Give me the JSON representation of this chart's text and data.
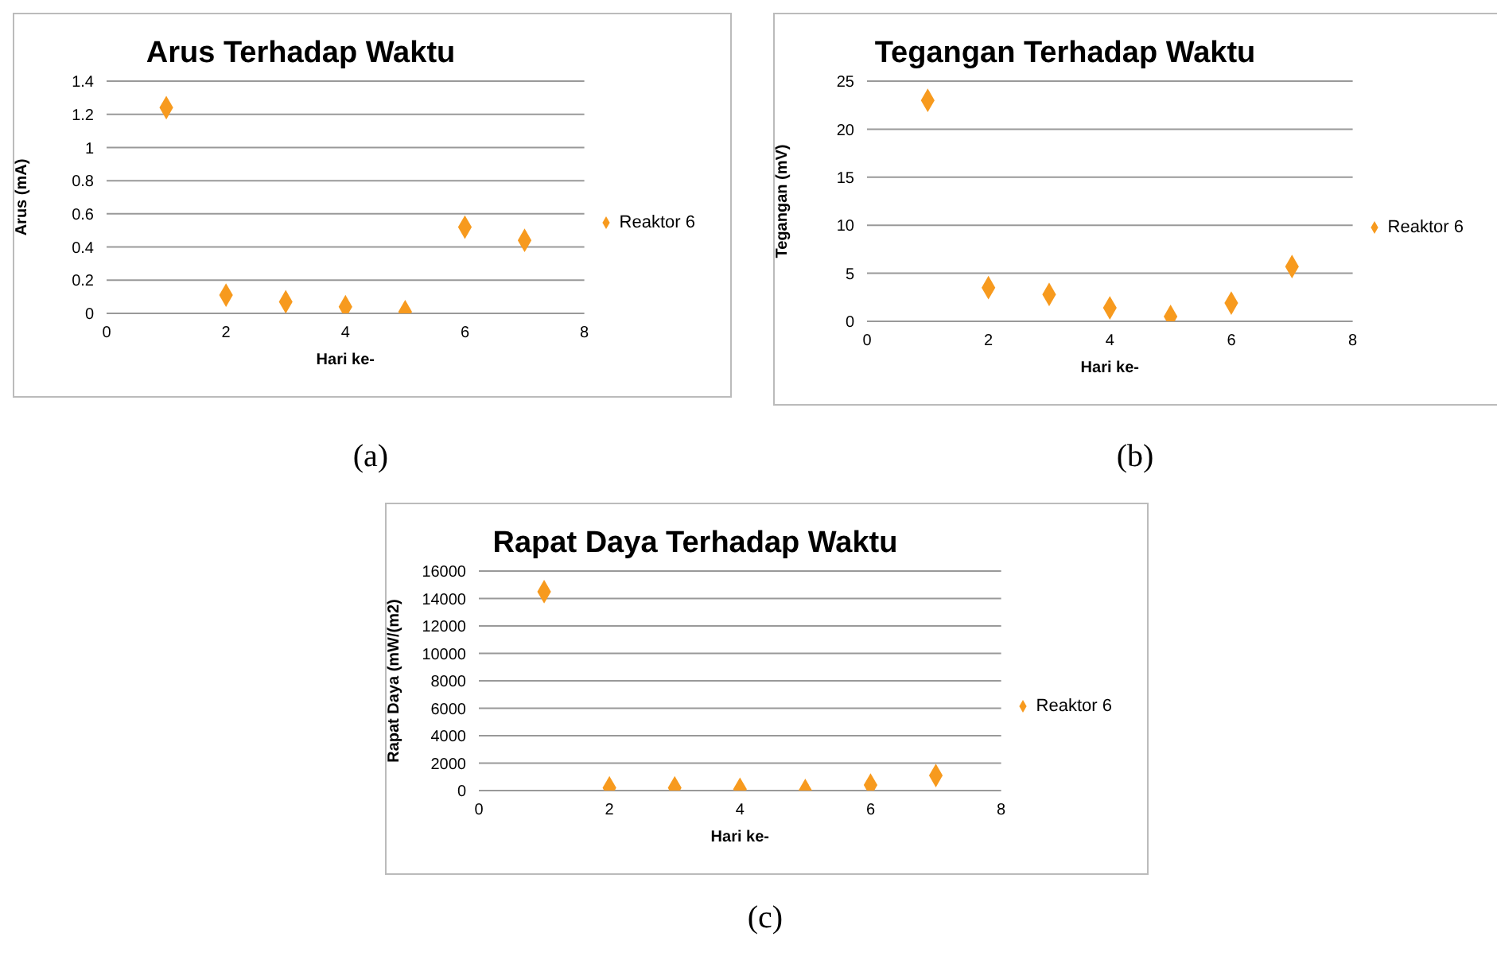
{
  "chart_data": [
    {
      "type": "scatter",
      "title": "Arus Terhadap Waktu",
      "xlabel": "Hari ke-",
      "ylabel": "Arus (mA)",
      "x": [
        1,
        2,
        3,
        4,
        5,
        6,
        7
      ],
      "series": [
        {
          "name": "Reaktor 6",
          "color": "#f79a1e",
          "values": [
            1.24,
            0.11,
            0.07,
            0.04,
            0.01,
            0.52,
            0.44
          ]
        }
      ],
      "xlim": [
        0,
        8
      ],
      "xticks": [
        0,
        2,
        4,
        6,
        8
      ],
      "ylim": [
        0,
        1.4
      ],
      "yticks": [
        0,
        0.2,
        0.4,
        0.6,
        0.8,
        1,
        1.2,
        1.4
      ],
      "grid": "y",
      "legend": "right",
      "marker": "diamond",
      "annotations": [
        "(a)"
      ]
    },
    {
      "type": "scatter",
      "title": "Tegangan Terhadap Waktu",
      "xlabel": "Hari ke-",
      "ylabel": "Tegangan (mV)",
      "x": [
        1,
        2,
        3,
        4,
        5,
        6,
        7
      ],
      "series": [
        {
          "name": "Reaktor 6",
          "color": "#f79a1e",
          "values": [
            23,
            3.5,
            2.8,
            1.4,
            0.5,
            1.9,
            5.7
          ]
        }
      ],
      "xlim": [
        0,
        8
      ],
      "xticks": [
        0,
        2,
        4,
        6,
        8
      ],
      "ylim": [
        0,
        25
      ],
      "yticks": [
        0,
        5,
        10,
        15,
        20,
        25
      ],
      "grid": "y",
      "legend": "right",
      "marker": "diamond",
      "annotations": [
        "(b)"
      ]
    },
    {
      "type": "scatter",
      "title": "Rapat Daya Terhadap Waktu",
      "xlabel": "Hari ke-",
      "ylabel": "Rapat Daya (mW/(m2)",
      "x": [
        1,
        2,
        3,
        4,
        5,
        6,
        7
      ],
      "series": [
        {
          "name": "Reaktor 6",
          "color": "#f79a1e",
          "values": [
            14500,
            200,
            200,
            100,
            0,
            400,
            1100
          ]
        }
      ],
      "xlim": [
        0,
        8
      ],
      "xticks": [
        0,
        2,
        4,
        6,
        8
      ],
      "ylim": [
        0,
        16000
      ],
      "yticks": [
        0,
        2000,
        4000,
        6000,
        8000,
        10000,
        12000,
        14000,
        16000
      ],
      "grid": "y",
      "legend": "right",
      "marker": "diamond",
      "annotations": [
        "(c)"
      ]
    }
  ]
}
